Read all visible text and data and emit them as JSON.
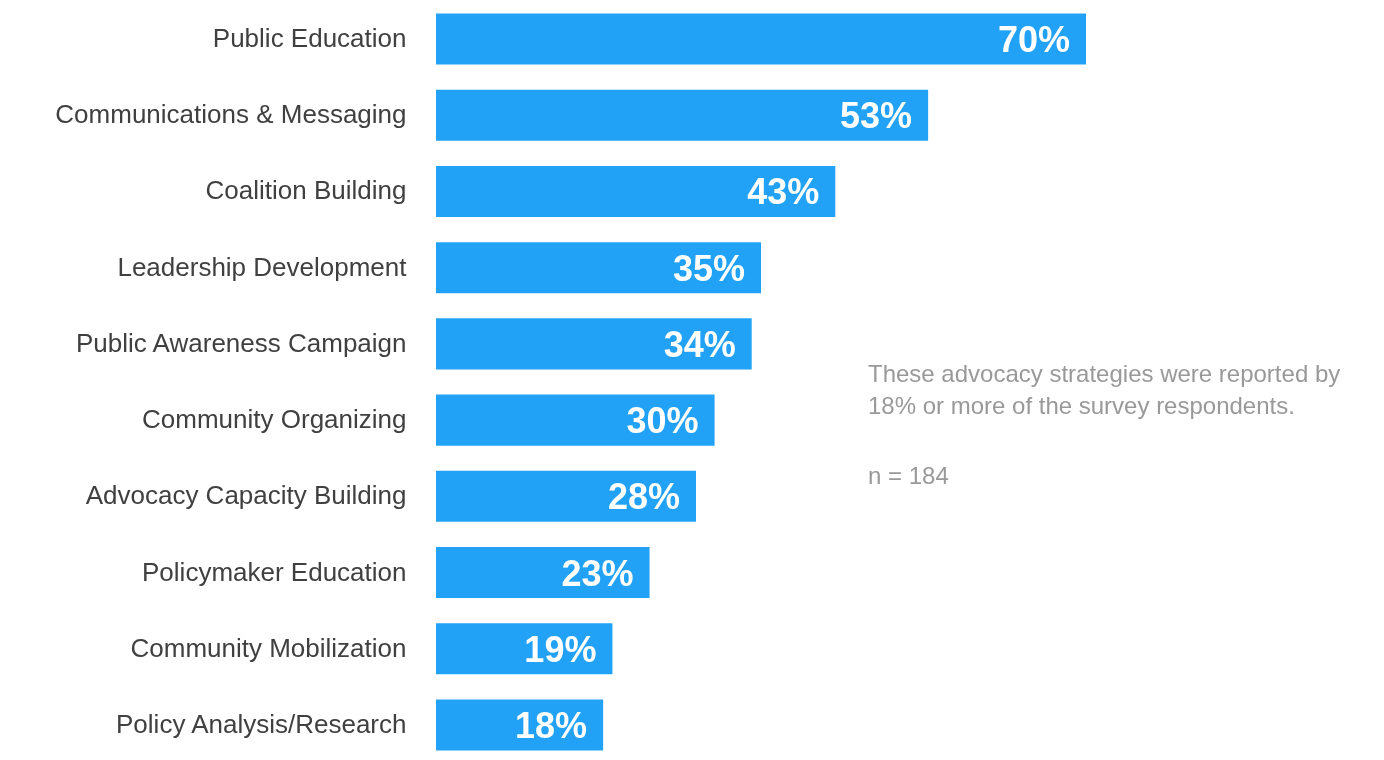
{
  "chart_data": {
    "type": "bar",
    "orientation": "horizontal",
    "categories": [
      "Public Education",
      "Communications & Messaging",
      "Coalition Building",
      "Leadership Development",
      "Public Awareness Campaign",
      "Community Organizing",
      "Advocacy Capacity Building",
      "Policymaker Education",
      "Community Mobilization",
      "Policy Analysis/Research"
    ],
    "values": [
      70,
      53,
      43,
      35,
      34,
      30,
      28,
      23,
      19,
      18
    ],
    "value_labels": [
      "70%",
      "53%",
      "43%",
      "35%",
      "34%",
      "30%",
      "28%",
      "23%",
      "19%",
      "18%"
    ],
    "color": "#22a2f7",
    "annotations": [
      "These advocacy strategies were reported by 18% or more of the survey respondents.",
      "n = 184"
    ]
  }
}
